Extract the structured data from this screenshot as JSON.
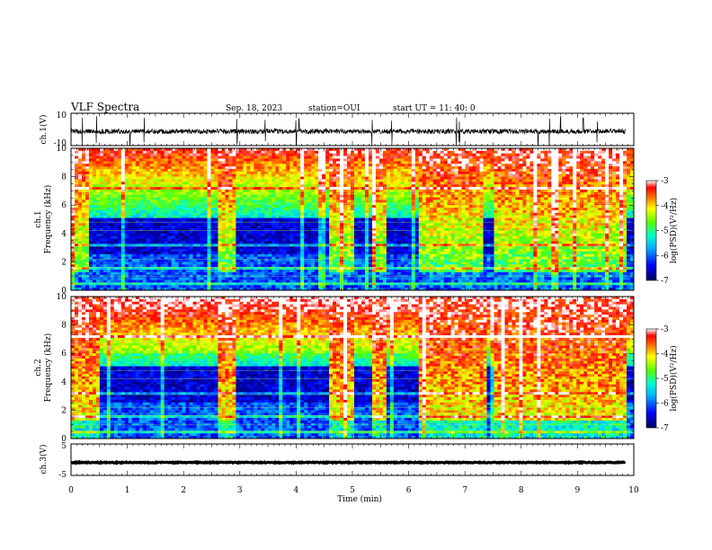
{
  "header": {
    "title": "VLF Spectra",
    "date": "Sep. 18, 2023",
    "station": "station=OUI",
    "start": "start  UT =  11: 40: 0"
  },
  "chart_data": [
    {
      "type": "line",
      "panel": "ch1-waveform",
      "ylabel": "ch.1(V)",
      "ylim": [
        -10,
        10
      ],
      "yticks": [
        "10",
        "-10"
      ],
      "baseline": -1.2,
      "spread": 1.5,
      "spikes": [
        0.2,
        0.45,
        1.05,
        1.3,
        2.95,
        3.45,
        4.0,
        4.05,
        5.35,
        5.7,
        6.85,
        6.9,
        8.3,
        8.5,
        8.7,
        9.1,
        9.35
      ]
    },
    {
      "type": "heatmap",
      "panel": "ch1-spectrogram",
      "ylabel": "ch.1\nFrequency (kHz)",
      "ylim": [
        0,
        10
      ],
      "yticks": [
        "0",
        "2",
        "4",
        "6",
        "8",
        "10"
      ],
      "xlim": [
        0,
        10
      ],
      "colorbar": {
        "label": "log(PSD)(V²/Hz)",
        "range": [
          -7,
          -3
        ],
        "ticks": [
          "-3",
          "-4",
          "-5",
          "-6",
          "-7"
        ]
      },
      "active_segments": [
        [
          0,
          0.3
        ],
        [
          2.6,
          2.95
        ],
        [
          4.6,
          5.05
        ],
        [
          5.35,
          5.6
        ],
        [
          6.2,
          7.35
        ],
        [
          7.5,
          8.6
        ],
        [
          8.6,
          9.0
        ],
        [
          9.0,
          9.85
        ]
      ]
    },
    {
      "type": "heatmap",
      "panel": "ch2-spectrogram",
      "ylabel": "ch.2\nFrequency (kHz)",
      "ylim": [
        0,
        10
      ],
      "yticks": [
        "0",
        "2",
        "4",
        "6",
        "8",
        "10"
      ],
      "xlim": [
        0,
        10
      ],
      "colorbar": {
        "label": "log(PSD)(V²/Hz)",
        "range": [
          -7,
          -3
        ],
        "ticks": [
          "-3",
          "-4",
          "-5",
          "-6",
          "-7"
        ]
      },
      "active_segments": [
        [
          0,
          0.5
        ],
        [
          2.6,
          2.95
        ],
        [
          4.6,
          5.05
        ],
        [
          5.35,
          5.6
        ],
        [
          6.2,
          7.4
        ],
        [
          7.5,
          8.5
        ],
        [
          8.5,
          9.0
        ],
        [
          9.0,
          9.85
        ]
      ]
    },
    {
      "type": "line",
      "panel": "ch3-waveform",
      "ylabel": "ch.3(V)",
      "ylim": [
        -5,
        5
      ],
      "yticks": [
        "5",
        "-5"
      ],
      "baseline": -0.9,
      "spread": 0.15
    }
  ],
  "xaxis": {
    "label": "Time (min)",
    "ticks": [
      "0",
      "1",
      "2",
      "3",
      "4",
      "5",
      "6",
      "7",
      "8",
      "9",
      "10"
    ]
  }
}
